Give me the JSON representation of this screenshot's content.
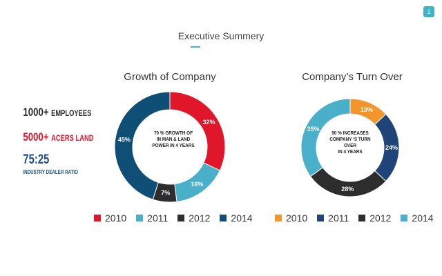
{
  "page_number": "1",
  "slide_title": "Executive Summery",
  "stats": {
    "employees_value": "1000+",
    "employees_label": "EMPLOYEES",
    "acres_value": "5000+",
    "acres_label": "ACERS  LAND",
    "ratio_value": "75:25",
    "ratio_label": "INDUSTRY DEALER RATIO"
  },
  "colors": {
    "c2010_left": "#e0162b",
    "c2011_left": "#4aafc9",
    "c2012": "#2d2d2d",
    "c2014_left": "#0f4f75",
    "c2010_right": "#f2962b",
    "c2011_right": "#1e4478",
    "c2014_right": "#4aafc9",
    "accent": "#3fb3c8"
  },
  "chart_data": [
    {
      "type": "pie",
      "title": "Growth of Company",
      "center_text": [
        "70 % GROWTH OF",
        "IN MAN & LAND",
        "POWER IN 4 YEARS"
      ],
      "slices": [
        {
          "label": "2010",
          "value": 32,
          "value_label": "32%",
          "color": "#e0162b"
        },
        {
          "label": "2011",
          "value": 16,
          "value_label": "16%",
          "color": "#4aafc9"
        },
        {
          "label": "2012",
          "value": 7,
          "value_label": "7%",
          "color": "#2d2d2d"
        },
        {
          "label": "2014",
          "value": 45,
          "value_label": "45%",
          "color": "#0f4f75"
        }
      ]
    },
    {
      "type": "pie",
      "title": "Company’s Turn Over",
      "center_text": [
        "90 %  INCREASES",
        "COMPANY ‘S TURN OVER",
        "IN 4 YEARS"
      ],
      "slices": [
        {
          "label": "2010",
          "value": 13,
          "value_label": "13%",
          "color": "#f2962b"
        },
        {
          "label": "2011",
          "value": 24,
          "value_label": "24%",
          "color": "#1e4478"
        },
        {
          "label": "2012",
          "value": 28,
          "value_label": "28%",
          "color": "#2d2d2d"
        },
        {
          "label": "2014",
          "value": 35,
          "value_label": "35%",
          "color": "#4aafc9"
        }
      ]
    }
  ]
}
